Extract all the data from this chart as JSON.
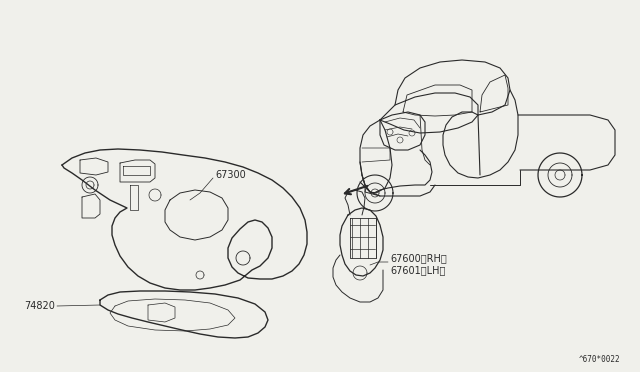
{
  "bg_color": "#f0f0eb",
  "line_color": "#2a2a2a",
  "text_color": "#2a2a2a",
  "font_size_label": 7.0,
  "font_size_caption": 5.5,
  "caption": "^670*0022"
}
